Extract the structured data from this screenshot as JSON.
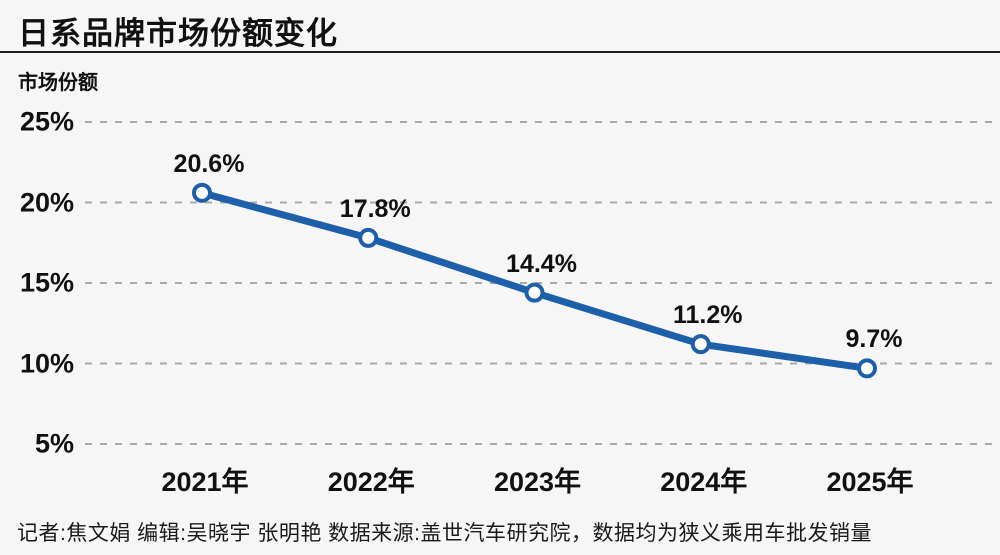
{
  "page": {
    "title": "日系品牌市场份额变化",
    "footer": "记者:焦文娟  编辑:吴晓宇 张明艳  数据来源:盖世汽车研究院，数据均为狭义乘用车批发销量"
  },
  "colors": {
    "background": "#f6f6f6",
    "line": "#1E5FA9",
    "marker_fill": "#ffffff",
    "grid": "#a9a9a9",
    "text": "#111111",
    "divider": "#1f1f1f"
  },
  "chart_data": {
    "type": "line",
    "title": "日系品牌市场份额变化",
    "xlabel": "",
    "ylabel": "市场份额",
    "categories": [
      "2021年",
      "2022年",
      "2023年",
      "2024年",
      "2025年"
    ],
    "values": [
      20.6,
      17.8,
      14.4,
      11.2,
      9.7
    ],
    "point_labels": [
      "20.6%",
      "17.8%",
      "14.4%",
      "11.2%",
      "9.7%"
    ],
    "yticks": [
      25,
      20,
      15,
      10,
      5
    ],
    "ytick_labels": [
      "25%",
      "20%",
      "15%",
      "10%",
      "5%"
    ],
    "ylim": [
      3,
      27
    ],
    "grid": "horizontal-dashed",
    "legend_position": "none",
    "marker": "open-circle"
  }
}
